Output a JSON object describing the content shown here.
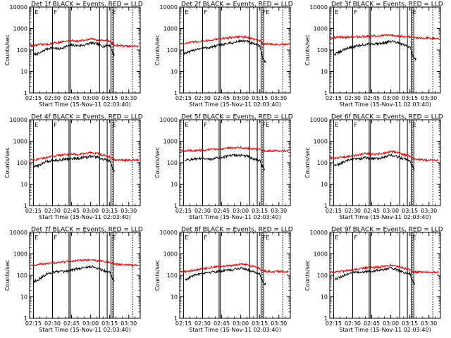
{
  "figure": {
    "background": "#ffffff",
    "axis_color": "#000000",
    "events_color": "#000000",
    "lld_color": "#e00000"
  },
  "chart_data": [
    {
      "type": "line",
      "title": "Det 1f  BLACK = Events, RED = LLD",
      "xlabel": "Start Time (15-Nov-11 02:03:40)",
      "ylabel": "Counts/sec",
      "yscale": "log",
      "ylim": [
        1,
        10000
      ],
      "xlim": [
        "02:12",
        "03:39"
      ],
      "x_ticks": [
        "02:15",
        "02:30",
        "02:45",
        "03:00",
        "03:15",
        "03:30"
      ],
      "y_ticks": [
        "1",
        "10",
        "100",
        "1000",
        "10000"
      ],
      "panel_markers": [
        "E",
        "F",
        "E"
      ],
      "x_knots": [
        "02:15",
        "02:20",
        "02:25",
        "02:30",
        "02:35",
        "02:40",
        "02:45",
        "02:50",
        "02:55",
        "03:00",
        "03:05",
        "03:10",
        "03:15",
        "03:18",
        "03:22",
        "03:27",
        "03:33",
        "03:38"
      ],
      "series": [
        {
          "color": "#000000",
          "start": "02:15",
          "end": "03:19",
          "values": [
            60,
            70,
            110,
            130,
            110,
            140,
            170,
            160,
            170,
            210,
            190,
            150,
            170,
            60,
            null,
            null,
            null,
            null
          ]
        },
        {
          "color": "#e00000",
          "start": "02:12",
          "end": "03:38",
          "values": [
            160,
            180,
            180,
            200,
            230,
            250,
            280,
            260,
            280,
            330,
            300,
            280,
            260,
            170,
            160,
            150,
            150,
            150
          ]
        }
      ],
      "event_lines": [
        "02:15",
        "02:30",
        "02:43",
        "02:44",
        "03:07",
        "03:13",
        "03:16",
        "03:18"
      ],
      "dotted_lines": [
        "03:17",
        "03:33"
      ]
    },
    {
      "type": "line",
      "title": "Det 2f  BLACK = Events, RED = LLD",
      "xlabel": "Start Time (15-Nov-11 02:03:40)",
      "ylabel": "Counts/sec",
      "yscale": "log",
      "ylim": [
        1,
        10000
      ],
      "xlim": [
        "02:12",
        "03:39"
      ],
      "x_ticks": [
        "02:15",
        "02:30",
        "02:45",
        "03:00",
        "03:15",
        "03:30"
      ],
      "y_ticks": [
        "1",
        "10",
        "100",
        "1000",
        "10000"
      ],
      "panel_markers": [
        "E",
        "F",
        "FE"
      ],
      "x_knots": [
        "02:15",
        "02:20",
        "02:25",
        "02:30",
        "02:35",
        "02:40",
        "02:45",
        "02:50",
        "02:55",
        "03:00",
        "03:05",
        "03:10",
        "03:15",
        "03:18",
        "03:22",
        "03:27",
        "03:33",
        "03:38"
      ],
      "series": [
        {
          "color": "#000000",
          "start": "02:15",
          "end": "03:20",
          "values": [
            70,
            80,
            110,
            120,
            130,
            150,
            180,
            200,
            220,
            270,
            250,
            190,
            160,
            30,
            null,
            null,
            null,
            null
          ]
        },
        {
          "color": "#e00000",
          "start": "02:12",
          "end": "03:38",
          "values": [
            200,
            220,
            240,
            260,
            280,
            310,
            340,
            370,
            400,
            420,
            380,
            320,
            260,
            200,
            190,
            180,
            180,
            180
          ]
        }
      ],
      "event_lines": [
        "02:15",
        "02:30",
        "02:43",
        "02:44",
        "03:07",
        "03:13",
        "03:16",
        "03:18"
      ],
      "dotted_lines": [
        "03:17",
        "03:33"
      ]
    },
    {
      "type": "line",
      "title": "Det 3f  BLACK = Events, RED = LLD",
      "xlabel": "Start Time (15-Nov-11 02:03:40)",
      "ylabel": "Counts/sec",
      "yscale": "log",
      "ylim": [
        1,
        10000
      ],
      "xlim": [
        "02:12",
        "03:39"
      ],
      "x_ticks": [
        "02:15",
        "02:30",
        "02:45",
        "03:00",
        "03:15",
        "03:30"
      ],
      "y_ticks": [
        "1",
        "10",
        "100",
        "1000",
        "10000"
      ],
      "panel_markers": [
        "E",
        "F",
        "E"
      ],
      "x_knots": [
        "02:15",
        "02:20",
        "02:25",
        "02:30",
        "02:35",
        "02:40",
        "02:45",
        "02:50",
        "02:55",
        "03:00",
        "03:05",
        "03:10",
        "03:15",
        "03:18",
        "03:22",
        "03:27",
        "03:33",
        "03:38"
      ],
      "series": [
        {
          "color": "#000000",
          "start": "02:15",
          "end": "03:20",
          "values": [
            60,
            80,
            120,
            140,
            160,
            180,
            190,
            200,
            220,
            250,
            220,
            170,
            140,
            40,
            null,
            null,
            null,
            null
          ]
        },
        {
          "color": "#e00000",
          "start": "02:12",
          "end": "03:38",
          "values": [
            380,
            390,
            400,
            400,
            410,
            420,
            440,
            450,
            470,
            500,
            470,
            430,
            400,
            380,
            370,
            360,
            360,
            350
          ]
        }
      ],
      "event_lines": [
        "02:15",
        "02:30",
        "02:43",
        "02:44",
        "03:07",
        "03:13",
        "03:16",
        "03:18"
      ],
      "dotted_lines": [
        "03:17",
        "03:33"
      ]
    },
    {
      "type": "line",
      "title": "Det 4f  BLACK = Events, RED = LLD",
      "xlabel": "Start Time (15-Nov-11 02:03:40)",
      "ylabel": "Counts/sec",
      "yscale": "log",
      "ylim": [
        1,
        10000
      ],
      "xlim": [
        "02:12",
        "03:39"
      ],
      "x_ticks": [
        "02:15",
        "02:30",
        "02:45",
        "03:00",
        "03:15",
        "03:30"
      ],
      "y_ticks": [
        "1",
        "10",
        "100",
        "1000",
        "10000"
      ],
      "panel_markers": [
        "E",
        "F",
        "E"
      ],
      "x_knots": [
        "02:15",
        "02:20",
        "02:25",
        "02:30",
        "02:35",
        "02:40",
        "02:45",
        "02:50",
        "02:55",
        "03:00",
        "03:05",
        "03:10",
        "03:15",
        "03:18",
        "03:22",
        "03:27",
        "03:33",
        "03:38"
      ],
      "series": [
        {
          "color": "#000000",
          "start": "02:15",
          "end": "03:19",
          "values": [
            60,
            80,
            110,
            130,
            130,
            150,
            150,
            160,
            170,
            200,
            180,
            140,
            120,
            40,
            null,
            null,
            null,
            null
          ]
        },
        {
          "color": "#e00000",
          "start": "02:12",
          "end": "03:38",
          "values": [
            140,
            150,
            170,
            200,
            220,
            240,
            250,
            240,
            260,
            300,
            270,
            220,
            180,
            140,
            130,
            130,
            130,
            130
          ]
        }
      ],
      "event_lines": [
        "02:15",
        "02:30",
        "02:43",
        "02:44",
        "03:07",
        "03:13",
        "03:16",
        "03:18"
      ],
      "dotted_lines": [
        "03:17",
        "03:33"
      ]
    },
    {
      "type": "line",
      "title": "Det 5f  BLACK = Events, RED = LLD",
      "xlabel": "Start Time (15-Nov-11 02:03:40)",
      "ylabel": "Counts/sec",
      "yscale": "log",
      "ylim": [
        1,
        10000
      ],
      "xlim": [
        "02:12",
        "03:39"
      ],
      "x_ticks": [
        "02:15",
        "02:30",
        "02:45",
        "03:00",
        "03:15",
        "03:30"
      ],
      "y_ticks": [
        "1",
        "10",
        "100",
        "1000",
        "10000"
      ],
      "panel_markers": [
        "E",
        "F",
        "FE"
      ],
      "x_knots": [
        "02:15",
        "02:20",
        "02:25",
        "02:30",
        "02:35",
        "02:40",
        "02:45",
        "02:50",
        "02:55",
        "03:00",
        "03:05",
        "03:10",
        "03:15",
        "03:18",
        "03:22",
        "03:27",
        "03:33",
        "03:38"
      ],
      "series": [
        {
          "color": "#000000",
          "start": "02:16",
          "end": "03:19",
          "values": [
            130,
            140,
            150,
            150,
            140,
            160,
            180,
            200,
            220,
            220,
            200,
            150,
            130,
            50,
            null,
            null,
            null,
            null
          ]
        },
        {
          "color": "#e00000",
          "start": "02:12",
          "end": "03:38",
          "values": [
            350,
            360,
            370,
            380,
            400,
            420,
            450,
            480,
            500,
            510,
            480,
            440,
            400,
            360,
            360,
            350,
            350,
            350
          ]
        }
      ],
      "event_lines": [
        "02:15",
        "02:30",
        "02:43",
        "02:44",
        "03:07",
        "03:13",
        "03:16",
        "03:18"
      ],
      "dotted_lines": [
        "03:17",
        "03:33"
      ]
    },
    {
      "type": "line",
      "title": "Det 6f  BLACK = Events, RED = LLD",
      "xlabel": "Start Time (15-Nov-11 02:03:40)",
      "ylabel": "Counts/sec",
      "yscale": "log",
      "ylim": [
        1,
        10000
      ],
      "xlim": [
        "02:12",
        "03:39"
      ],
      "x_ticks": [
        "02:15",
        "02:30",
        "02:45",
        "03:00",
        "03:15",
        "03:30"
      ],
      "y_ticks": [
        "1",
        "10",
        "100",
        "1000",
        "10000"
      ],
      "panel_markers": [
        "E",
        "F",
        "E"
      ],
      "x_knots": [
        "02:15",
        "02:20",
        "02:25",
        "02:30",
        "02:35",
        "02:40",
        "02:45",
        "02:50",
        "02:55",
        "03:00",
        "03:05",
        "03:10",
        "03:15",
        "03:18",
        "03:22",
        "03:27",
        "03:33",
        "03:38"
      ],
      "series": [
        {
          "color": "#000000",
          "start": "02:15",
          "end": "03:19",
          "values": [
            70,
            90,
            120,
            150,
            150,
            170,
            150,
            160,
            180,
            220,
            190,
            150,
            130,
            50,
            null,
            null,
            null,
            null
          ]
        },
        {
          "color": "#e00000",
          "start": "02:12",
          "end": "03:38",
          "values": [
            160,
            170,
            190,
            210,
            230,
            270,
            240,
            250,
            280,
            330,
            300,
            240,
            200,
            150,
            140,
            130,
            130,
            130
          ]
        }
      ],
      "event_lines": [
        "02:15",
        "02:30",
        "02:43",
        "02:44",
        "03:07",
        "03:13",
        "03:16",
        "03:18"
      ],
      "dotted_lines": [
        "03:17",
        "03:33"
      ]
    },
    {
      "type": "line",
      "title": "Det 7f  BLACK = Events, RED = LLD",
      "xlabel": "Start Time (15-Nov-11 02:03:40)",
      "ylabel": "Counts/sec",
      "yscale": "log",
      "ylim": [
        1,
        10000
      ],
      "xlim": [
        "02:12",
        "03:39"
      ],
      "x_ticks": [
        "02:15",
        "02:30",
        "02:45",
        "03:00",
        "03:15",
        "03:30"
      ],
      "y_ticks": [
        "1",
        "10",
        "100",
        "1000",
        "10000"
      ],
      "panel_markers": [
        "E",
        "F",
        "E"
      ],
      "x_knots": [
        "02:15",
        "02:20",
        "02:25",
        "02:30",
        "02:35",
        "02:40",
        "02:45",
        "02:50",
        "02:55",
        "03:00",
        "03:05",
        "03:10",
        "03:15",
        "03:18",
        "03:22",
        "03:27",
        "03:33",
        "03:38"
      ],
      "series": [
        {
          "color": "#000000",
          "start": "02:15",
          "end": "03:19",
          "values": [
            50,
            70,
            110,
            140,
            150,
            140,
            180,
            200,
            230,
            260,
            220,
            170,
            140,
            60,
            null,
            null,
            null,
            null
          ]
        },
        {
          "color": "#e00000",
          "start": "02:12",
          "end": "03:38",
          "values": [
            300,
            320,
            350,
            380,
            400,
            420,
            450,
            480,
            500,
            520,
            490,
            440,
            400,
            330,
            320,
            310,
            300,
            300
          ]
        }
      ],
      "event_lines": [
        "02:15",
        "02:30",
        "02:43",
        "02:44",
        "03:07",
        "03:13",
        "03:16",
        "03:18"
      ],
      "dotted_lines": [
        "03:17",
        "03:33"
      ]
    },
    {
      "type": "line",
      "title": "Det 8f  BLACK = Events, RED = LLD",
      "xlabel": "Start Time (15-Nov-11 02:03:40)",
      "ylabel": "Counts/sec",
      "yscale": "log",
      "ylim": [
        1,
        10000
      ],
      "xlim": [
        "02:12",
        "03:39"
      ],
      "x_ticks": [
        "02:15",
        "02:30",
        "02:45",
        "03:00",
        "03:15",
        "03:30"
      ],
      "y_ticks": [
        "1",
        "10",
        "100",
        "1000",
        "10000"
      ],
      "panel_markers": [
        "E",
        "F",
        "FE"
      ],
      "x_knots": [
        "02:15",
        "02:20",
        "02:25",
        "02:30",
        "02:35",
        "02:40",
        "02:45",
        "02:50",
        "02:55",
        "03:00",
        "03:05",
        "03:10",
        "03:15",
        "03:18",
        "03:22",
        "03:27",
        "03:33",
        "03:38"
      ],
      "series": [
        {
          "color": "#000000",
          "start": "02:16",
          "end": "03:20",
          "values": [
            60,
            80,
            110,
            130,
            140,
            150,
            160,
            170,
            190,
            220,
            190,
            150,
            120,
            40,
            null,
            null,
            null,
            null
          ]
        },
        {
          "color": "#e00000",
          "start": "02:12",
          "end": "03:38",
          "values": [
            150,
            160,
            180,
            200,
            230,
            250,
            260,
            280,
            300,
            340,
            300,
            250,
            210,
            160,
            150,
            150,
            150,
            150
          ]
        }
      ],
      "event_lines": [
        "02:15",
        "02:30",
        "02:43",
        "02:44",
        "03:07",
        "03:13",
        "03:16",
        "03:18"
      ],
      "dotted_lines": [
        "03:17",
        "03:33"
      ]
    },
    {
      "type": "line",
      "title": "Det 9f  BLACK = Events, RED = LLD",
      "xlabel": "Start Time (15-Nov-11 02:03:40)",
      "ylabel": "Counts/sec",
      "yscale": "log",
      "ylim": [
        1,
        10000
      ],
      "xlim": [
        "02:12",
        "03:39"
      ],
      "x_ticks": [
        "02:15",
        "02:30",
        "02:45",
        "03:00",
        "03:15",
        "03:30"
      ],
      "y_ticks": [
        "1",
        "10",
        "100",
        "1000",
        "10000"
      ],
      "panel_markers": [
        "E",
        "F",
        "E"
      ],
      "x_knots": [
        "02:15",
        "02:20",
        "02:25",
        "02:30",
        "02:35",
        "02:40",
        "02:45",
        "02:50",
        "02:55",
        "03:00",
        "03:05",
        "03:10",
        "03:15",
        "03:18",
        "03:22",
        "03:27",
        "03:33",
        "03:38"
      ],
      "series": [
        {
          "color": "#000000",
          "start": "02:16",
          "end": "03:19",
          "values": [
            60,
            80,
            110,
            140,
            130,
            150,
            160,
            170,
            190,
            210,
            180,
            140,
            120,
            40,
            null,
            null,
            null,
            null
          ]
        },
        {
          "color": "#e00000",
          "start": "02:12",
          "end": "03:38",
          "values": [
            140,
            150,
            160,
            180,
            200,
            220,
            230,
            240,
            260,
            300,
            270,
            220,
            180,
            140,
            140,
            140,
            140,
            140
          ]
        }
      ],
      "event_lines": [
        "02:15",
        "02:30",
        "02:43",
        "02:44",
        "03:07",
        "03:13",
        "03:16",
        "03:18"
      ],
      "dotted_lines": [
        "03:17",
        "03:33"
      ]
    }
  ]
}
